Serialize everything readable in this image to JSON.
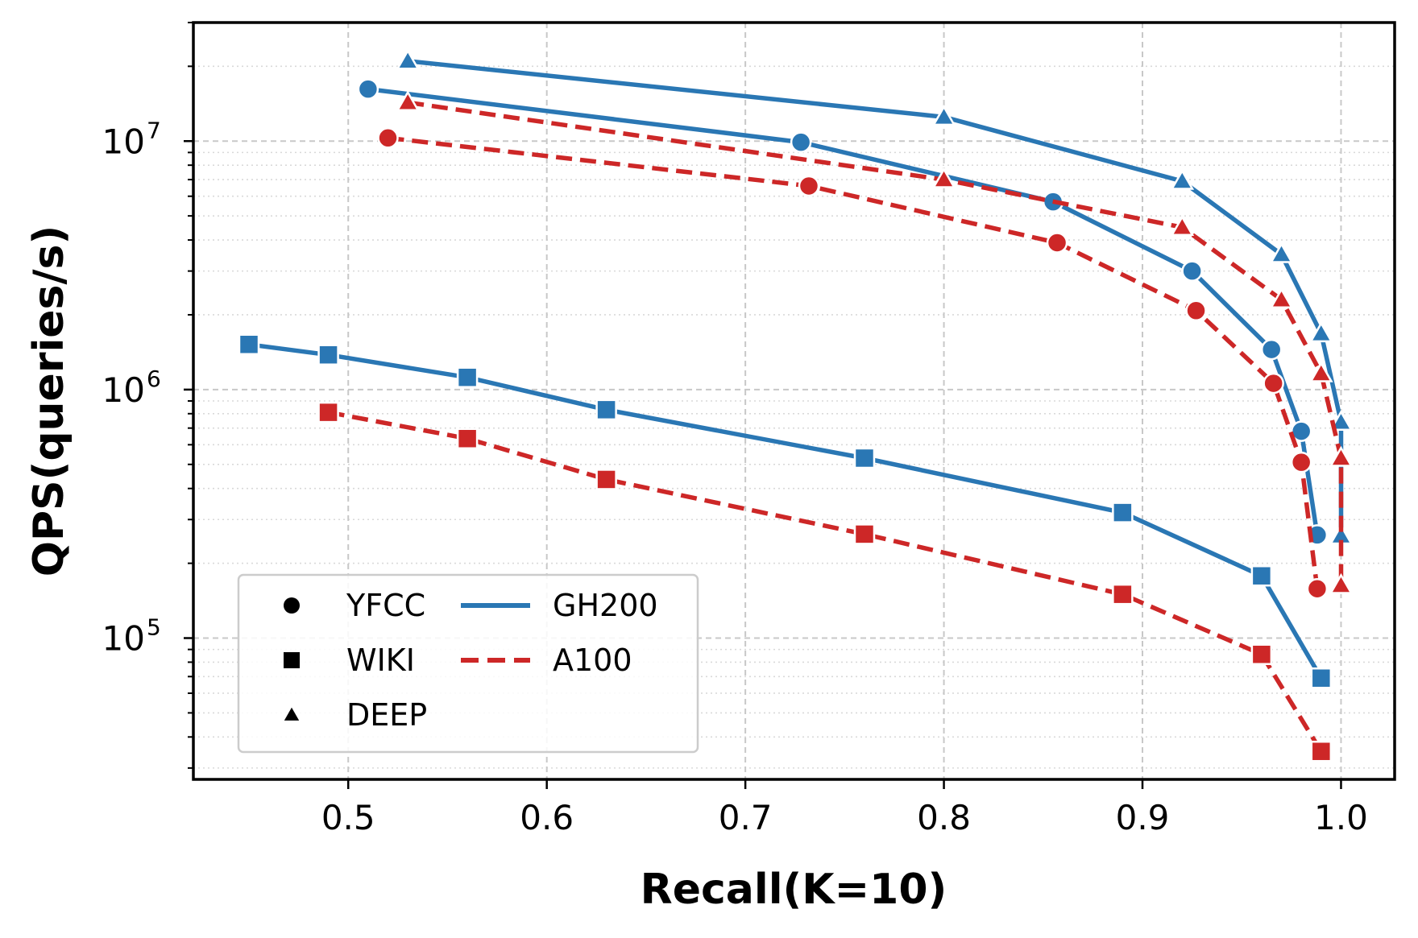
{
  "chart_data": {
    "type": "line",
    "title": "",
    "xlabel": "Recall(K=10)",
    "ylabel": "QPS(queries/s)",
    "xlim": [
      0.422,
      1.027
    ],
    "ylim": [
      27000,
      30000000
    ],
    "yscale": "log",
    "grid": true,
    "legend_position": "lower-left",
    "x_ticks": [
      "0.5",
      "0.6",
      "0.7",
      "0.8",
      "0.9",
      "1.0"
    ],
    "y_ticks": [
      {
        "base": "10",
        "exp": "5",
        "value": 100000
      },
      {
        "base": "10",
        "exp": "6",
        "value": 1000000
      },
      {
        "base": "10",
        "exp": "7",
        "value": 10000000
      }
    ],
    "colors": {
      "GH200": "#2a77b4",
      "A100": "#cd2727"
    },
    "legend": {
      "datasets": [
        {
          "label": "YFCC",
          "marker": "circle"
        },
        {
          "label": "WIKI",
          "marker": "square"
        },
        {
          "label": "DEEP",
          "marker": "triangle"
        }
      ],
      "devices": [
        {
          "label": "GH200",
          "style": "solid"
        },
        {
          "label": "A100",
          "style": "dashed"
        }
      ]
    },
    "series": [
      {
        "name": "YFCC-GH200",
        "dataset": "YFCC",
        "device": "GH200",
        "x": [
          0.51,
          0.728,
          0.855,
          0.925,
          0.965,
          0.98,
          0.988
        ],
        "y": [
          16200000,
          9900000,
          5700000,
          3000000,
          1450000,
          680000,
          260000
        ]
      },
      {
        "name": "YFCC-A100",
        "dataset": "YFCC",
        "device": "A100",
        "x": [
          0.52,
          0.732,
          0.857,
          0.927,
          0.966,
          0.98,
          0.988
        ],
        "y": [
          10300000,
          6600000,
          3900000,
          2080000,
          1060000,
          510000,
          158000
        ]
      },
      {
        "name": "WIKI-GH200",
        "dataset": "WIKI",
        "device": "GH200",
        "x": [
          0.45,
          0.49,
          0.56,
          0.63,
          0.76,
          0.89,
          0.96,
          0.99
        ],
        "y": [
          1520000,
          1380000,
          1120000,
          830000,
          530000,
          320000,
          178000,
          69000
        ]
      },
      {
        "name": "WIKI-A100",
        "dataset": "WIKI",
        "device": "A100",
        "x": [
          0.49,
          0.56,
          0.63,
          0.76,
          0.89,
          0.96,
          0.99
        ],
        "y": [
          810000,
          635000,
          435000,
          262000,
          150000,
          86000,
          35000
        ]
      },
      {
        "name": "DEEP-GH200",
        "dataset": "DEEP",
        "device": "GH200",
        "x": [
          0.53,
          0.8,
          0.92,
          0.97,
          0.99,
          1.0,
          1.0
        ],
        "y": [
          21000000,
          12500000,
          6900000,
          3500000,
          1680000,
          740000,
          258000
        ]
      },
      {
        "name": "DEEP-A100",
        "dataset": "DEEP",
        "device": "A100",
        "x": [
          0.53,
          0.8,
          0.92,
          0.97,
          0.99,
          1.0,
          1.0
        ],
        "y": [
          14300000,
          7000000,
          4500000,
          2300000,
          1160000,
          530000,
          163000
        ]
      }
    ]
  }
}
